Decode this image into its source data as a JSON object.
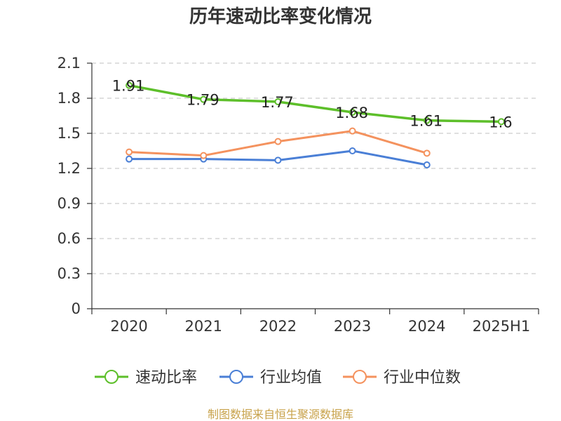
{
  "chart_data": {
    "type": "line",
    "title": "历年速动比率变化情况",
    "categories": [
      "2020",
      "2021",
      "2022",
      "2023",
      "2024",
      "2025H1"
    ],
    "ylim": [
      0,
      2.1
    ],
    "yticks": [
      "0",
      "0.3",
      "0.6",
      "0.9",
      "1.2",
      "1.5",
      "1.8",
      "2.1"
    ],
    "grid": true,
    "legend_position": "bottom",
    "series": [
      {
        "name": "速动比率",
        "color": "#5dbf2a",
        "values": [
          1.91,
          1.79,
          1.77,
          1.68,
          1.61,
          1.6
        ],
        "labels": [
          "1.91",
          "1.79",
          "1.77",
          "1.68",
          "1.61",
          "1.6"
        ]
      },
      {
        "name": "行业均值",
        "color": "#4a7fd6",
        "values": [
          1.28,
          1.28,
          1.27,
          1.35,
          1.23,
          null
        ]
      },
      {
        "name": "行业中位数",
        "color": "#f4925e",
        "values": [
          1.34,
          1.31,
          1.43,
          1.52,
          1.33,
          null
        ]
      }
    ]
  },
  "source": "制图数据来自恒生聚源数据库"
}
